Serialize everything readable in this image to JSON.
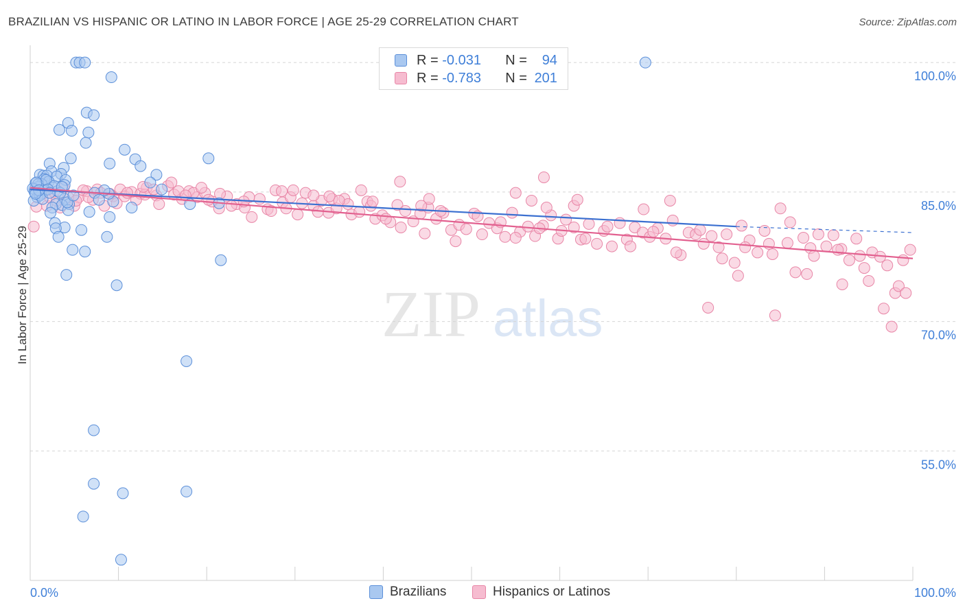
{
  "title": "BRAZILIAN VS HISPANIC OR LATINO IN LABOR FORCE | AGE 25-29 CORRELATION CHART",
  "source": "Source: ZipAtlas.com",
  "watermark": {
    "zip": "ZIP",
    "atlas": "atlas"
  },
  "legend": {
    "rows": [
      {
        "r_label": "R =",
        "r_value": "-0.031",
        "n_label": "N =",
        "n_value": "94"
      },
      {
        "r_label": "R =",
        "r_value": "-0.783",
        "n_label": "N =",
        "n_value": "201"
      }
    ]
  },
  "bottom_legend": [
    "Brazilians",
    "Hispanics or Latinos"
  ],
  "colors": {
    "blue_fill": "#a9c8f0",
    "blue_stroke": "#5b8fd9",
    "blue_line": "#3a6fd0",
    "pink_fill": "#f6bcd0",
    "pink_stroke": "#e885a6",
    "pink_line": "#e2608f",
    "grid": "#d5d5d5",
    "axis_label": "#3f7fd8"
  },
  "chart_data": {
    "type": "scatter",
    "xlabel": "",
    "ylabel": "In Labor Force | Age 25-29",
    "xlim": [
      0,
      100
    ],
    "ylim": [
      40,
      102
    ],
    "x_tick_labels": [
      "0.0%",
      "100.0%"
    ],
    "y_ticks": [
      {
        "value": 100,
        "label": "100.0%"
      },
      {
        "value": 85,
        "label": "85.0%"
      },
      {
        "value": 70,
        "label": "70.0%"
      },
      {
        "value": 55,
        "label": "55.0%"
      }
    ],
    "grid": true,
    "series": [
      {
        "name": "Brazilians",
        "trend": {
          "x": [
            0,
            80,
            100
          ],
          "y": [
            85.3,
            81.0,
            80.3
          ],
          "solid_until": 80
        },
        "points": [
          [
            5.2,
            100
          ],
          [
            5.6,
            100
          ],
          [
            6.2,
            100
          ],
          [
            9.2,
            98.3
          ],
          [
            6.4,
            94.2
          ],
          [
            7.2,
            93.9
          ],
          [
            4.3,
            93.0
          ],
          [
            3.3,
            92.2
          ],
          [
            4.7,
            92.1
          ],
          [
            6.6,
            91.9
          ],
          [
            6.3,
            90.7
          ],
          [
            10.7,
            89.9
          ],
          [
            4.6,
            88.9
          ],
          [
            11.9,
            88.8
          ],
          [
            2.2,
            88.3
          ],
          [
            9.0,
            88.3
          ],
          [
            12.5,
            88.0
          ],
          [
            3.8,
            87.8
          ],
          [
            2.4,
            87.4
          ],
          [
            3.5,
            87.1
          ],
          [
            1.1,
            87.0
          ],
          [
            1.5,
            86.9
          ],
          [
            1.9,
            86.9
          ],
          [
            3.0,
            86.8
          ],
          [
            1.6,
            86.5
          ],
          [
            4.0,
            86.4
          ],
          [
            2.1,
            86.2
          ],
          [
            0.6,
            86.0
          ],
          [
            1.3,
            85.9
          ],
          [
            3.9,
            85.8
          ],
          [
            0.9,
            85.6
          ],
          [
            2.6,
            85.5
          ],
          [
            0.5,
            85.3
          ],
          [
            1.7,
            85.2
          ],
          [
            3.1,
            85.1
          ],
          [
            1.2,
            84.8
          ],
          [
            0.8,
            84.4
          ],
          [
            7.3,
            84.9
          ],
          [
            3.9,
            84.2
          ],
          [
            9.4,
            83.9
          ],
          [
            8.9,
            84.8
          ],
          [
            4.4,
            83.6
          ],
          [
            0.4,
            84.0
          ],
          [
            2.9,
            83.6
          ],
          [
            3.6,
            83.5
          ],
          [
            2.5,
            83.2
          ],
          [
            11.5,
            83.2
          ],
          [
            6.7,
            82.7
          ],
          [
            2.3,
            82.6
          ],
          [
            4.3,
            82.9
          ],
          [
            9.0,
            82.1
          ],
          [
            2.8,
            81.4
          ],
          [
            3.9,
            80.9
          ],
          [
            2.9,
            80.8
          ],
          [
            5.8,
            80.6
          ],
          [
            3.2,
            79.8
          ],
          [
            8.7,
            79.8
          ],
          [
            4.8,
            78.3
          ],
          [
            6.2,
            78.1
          ],
          [
            21.6,
            77.1
          ],
          [
            4.1,
            75.4
          ],
          [
            9.8,
            74.2
          ],
          [
            1.1,
            84.6
          ],
          [
            0.9,
            85.9
          ],
          [
            1.8,
            86.4
          ],
          [
            2.7,
            85.7
          ],
          [
            3.4,
            84.9
          ],
          [
            4.2,
            83.8
          ],
          [
            0.3,
            85.4
          ],
          [
            0.5,
            85.0
          ],
          [
            0.7,
            86.1
          ],
          [
            1.4,
            84.2
          ],
          [
            2.0,
            85.3
          ],
          [
            2.2,
            84.9
          ],
          [
            3.6,
            85.6
          ],
          [
            1.0,
            85.2
          ],
          [
            0.6,
            84.8
          ],
          [
            14.3,
            87.0
          ],
          [
            14.9,
            85.3
          ],
          [
            18.1,
            83.6
          ],
          [
            13.6,
            86.1
          ],
          [
            20.2,
            88.9
          ],
          [
            21.4,
            83.7
          ],
          [
            4.9,
            84.6
          ],
          [
            69.7,
            100
          ],
          [
            17.7,
            65.4
          ],
          [
            7.2,
            57.4
          ],
          [
            7.2,
            51.2
          ],
          [
            10.5,
            50.1
          ],
          [
            17.7,
            50.3
          ],
          [
            6.0,
            47.4
          ],
          [
            10.3,
            42.4
          ],
          [
            7.8,
            84.1
          ],
          [
            8.4,
            85.2
          ]
        ]
      },
      {
        "name": "Hispanics or Latinos",
        "trend": {
          "x": [
            0,
            100
          ],
          "y": [
            85.5,
            77.3
          ]
        },
        "points": [
          [
            0.4,
            81.0
          ],
          [
            0.7,
            83.3
          ],
          [
            1.9,
            83.4
          ],
          [
            2.2,
            84.4
          ],
          [
            2.7,
            85.0
          ],
          [
            3.4,
            83.2
          ],
          [
            4.3,
            84.4
          ],
          [
            5.0,
            83.4
          ],
          [
            5.5,
            84.4
          ],
          [
            6.4,
            85.1
          ],
          [
            7.1,
            84.1
          ],
          [
            7.6,
            85.3
          ],
          [
            8.4,
            83.4
          ],
          [
            9.4,
            84.5
          ],
          [
            10.2,
            85.3
          ],
          [
            10.7,
            84.5
          ],
          [
            11.5,
            85.0
          ],
          [
            12.5,
            84.8
          ],
          [
            13.2,
            85.5
          ],
          [
            14.3,
            84.6
          ],
          [
            15.6,
            85.7
          ],
          [
            16.3,
            84.7
          ],
          [
            17.2,
            84.2
          ],
          [
            18.0,
            85.1
          ],
          [
            18.9,
            84.4
          ],
          [
            19.8,
            84.9
          ],
          [
            20.6,
            83.9
          ],
          [
            21.4,
            83.1
          ],
          [
            22.3,
            84.5
          ],
          [
            23.4,
            83.6
          ],
          [
            24.3,
            83.2
          ],
          [
            25.1,
            82.1
          ],
          [
            26.0,
            84.2
          ],
          [
            26.9,
            83.0
          ],
          [
            27.8,
            85.2
          ],
          [
            28.6,
            83.8
          ],
          [
            29.5,
            84.4
          ],
          [
            30.3,
            82.4
          ],
          [
            31.2,
            84.9
          ],
          [
            32.1,
            83.4
          ],
          [
            33.0,
            84.0
          ],
          [
            33.8,
            82.6
          ],
          [
            34.7,
            83.1
          ],
          [
            35.6,
            84.2
          ],
          [
            36.4,
            82.4
          ],
          [
            37.3,
            82.7
          ],
          [
            38.2,
            83.9
          ],
          [
            39.1,
            81.9
          ],
          [
            39.9,
            82.3
          ],
          [
            40.8,
            81.5
          ],
          [
            41.6,
            83.5
          ],
          [
            42.5,
            82.8
          ],
          [
            43.4,
            81.6
          ],
          [
            44.2,
            82.5
          ],
          [
            45.1,
            83.2
          ],
          [
            46.0,
            81.9
          ],
          [
            46.8,
            82.6
          ],
          [
            47.7,
            80.6
          ],
          [
            48.6,
            81.2
          ],
          [
            49.4,
            80.7
          ],
          [
            50.3,
            82.5
          ],
          [
            51.2,
            80.1
          ],
          [
            52.0,
            81.4
          ],
          [
            52.9,
            80.8
          ],
          [
            53.8,
            79.8
          ],
          [
            54.6,
            82.6
          ],
          [
            55.5,
            80.4
          ],
          [
            56.4,
            81.0
          ],
          [
            57.2,
            79.9
          ],
          [
            58.1,
            81.1
          ],
          [
            59.0,
            82.3
          ],
          [
            59.8,
            79.6
          ],
          [
            60.7,
            81.8
          ],
          [
            61.6,
            80.9
          ],
          [
            62.4,
            79.5
          ],
          [
            63.3,
            81.3
          ],
          [
            64.2,
            79.0
          ],
          [
            65.0,
            80.5
          ],
          [
            65.9,
            78.7
          ],
          [
            66.8,
            81.4
          ],
          [
            67.6,
            79.5
          ],
          [
            68.5,
            80.9
          ],
          [
            69.4,
            80.3
          ],
          [
            70.2,
            79.8
          ],
          [
            71.1,
            80.8
          ],
          [
            72.0,
            79.6
          ],
          [
            72.8,
            81.7
          ],
          [
            73.7,
            77.7
          ],
          [
            74.6,
            80.3
          ],
          [
            75.4,
            80.1
          ],
          [
            76.3,
            79.0
          ],
          [
            77.2,
            79.9
          ],
          [
            78.0,
            78.6
          ],
          [
            78.9,
            80.1
          ],
          [
            79.8,
            76.8
          ],
          [
            80.6,
            81.1
          ],
          [
            81.5,
            79.4
          ],
          [
            82.4,
            78.0
          ],
          [
            83.2,
            80.5
          ],
          [
            84.1,
            77.8
          ],
          [
            85.0,
            83.1
          ],
          [
            85.8,
            79.1
          ],
          [
            86.7,
            75.7
          ],
          [
            87.6,
            79.7
          ],
          [
            88.4,
            78.5
          ],
          [
            89.3,
            80.1
          ],
          [
            90.2,
            78.7
          ],
          [
            91.0,
            80.0
          ],
          [
            91.9,
            78.4
          ],
          [
            92.8,
            77.1
          ],
          [
            93.6,
            79.6
          ],
          [
            94.5,
            76.2
          ],
          [
            95.4,
            78.0
          ],
          [
            96.3,
            77.5
          ],
          [
            97.1,
            76.5
          ],
          [
            98.0,
            73.3
          ],
          [
            98.9,
            77.1
          ],
          [
            99.7,
            78.3
          ],
          [
            1.4,
            84.8
          ],
          [
            3.0,
            84.0
          ],
          [
            6.0,
            85.2
          ],
          [
            8.0,
            84.9
          ],
          [
            9.8,
            83.7
          ],
          [
            11.0,
            84.9
          ],
          [
            12.0,
            84.1
          ],
          [
            13.0,
            84.7
          ],
          [
            14.6,
            83.6
          ],
          [
            16.8,
            85.1
          ],
          [
            18.5,
            84.9
          ],
          [
            20.2,
            84.1
          ],
          [
            22.8,
            83.4
          ],
          [
            24.8,
            84.4
          ],
          [
            27.3,
            82.8
          ],
          [
            29.0,
            83.1
          ],
          [
            30.8,
            83.7
          ],
          [
            32.6,
            82.7
          ],
          [
            34.2,
            84.2
          ],
          [
            36.0,
            83.6
          ],
          [
            38.6,
            83.4
          ],
          [
            40.3,
            81.9
          ],
          [
            42.0,
            80.9
          ],
          [
            44.7,
            80.2
          ],
          [
            46.5,
            82.8
          ],
          [
            48.2,
            79.3
          ],
          [
            50.7,
            82.2
          ],
          [
            53.3,
            81.5
          ],
          [
            55.0,
            79.7
          ],
          [
            57.7,
            80.8
          ],
          [
            60.2,
            80.5
          ],
          [
            62.9,
            79.6
          ],
          [
            65.4,
            81.0
          ],
          [
            68.0,
            78.7
          ],
          [
            70.6,
            80.4
          ],
          [
            73.2,
            78.0
          ],
          [
            75.9,
            80.6
          ],
          [
            78.4,
            77.3
          ],
          [
            81.0,
            78.6
          ],
          [
            83.7,
            79.0
          ],
          [
            86.1,
            81.5
          ],
          [
            88.8,
            77.6
          ],
          [
            91.5,
            78.3
          ],
          [
            94.0,
            77.6
          ],
          [
            96.7,
            71.5
          ],
          [
            98.4,
            74.1
          ],
          [
            95.0,
            74.7
          ],
          [
            92.0,
            74.3
          ],
          [
            88.0,
            75.5
          ],
          [
            84.4,
            70.7
          ],
          [
            76.8,
            71.6
          ],
          [
            97.6,
            69.4
          ],
          [
            99.2,
            73.3
          ],
          [
            80.2,
            75.3
          ],
          [
            56.8,
            84.0
          ],
          [
            41.9,
            86.2
          ],
          [
            58.5,
            83.2
          ],
          [
            29.8,
            85.2
          ],
          [
            21.5,
            84.8
          ],
          [
            45.2,
            84.2
          ],
          [
            32.1,
            84.6
          ],
          [
            14.0,
            85.3
          ],
          [
            17.6,
            84.6
          ],
          [
            19.4,
            85.5
          ],
          [
            9.0,
            84.8
          ],
          [
            5.2,
            84.0
          ],
          [
            24.2,
            83.9
          ],
          [
            37.5,
            85.2
          ],
          [
            61.6,
            83.4
          ],
          [
            69.5,
            83.0
          ],
          [
            72.5,
            84.0
          ],
          [
            44.3,
            83.4
          ],
          [
            62.0,
            84.1
          ],
          [
            35.0,
            84.0
          ],
          [
            55.0,
            84.9
          ],
          [
            58.2,
            86.7
          ],
          [
            33.9,
            84.5
          ],
          [
            38.8,
            83.9
          ],
          [
            28.5,
            85.1
          ],
          [
            16.0,
            86.1
          ],
          [
            12.8,
            85.6
          ],
          [
            6.6,
            84.4
          ],
          [
            3.8,
            85.5
          ]
        ]
      }
    ]
  }
}
